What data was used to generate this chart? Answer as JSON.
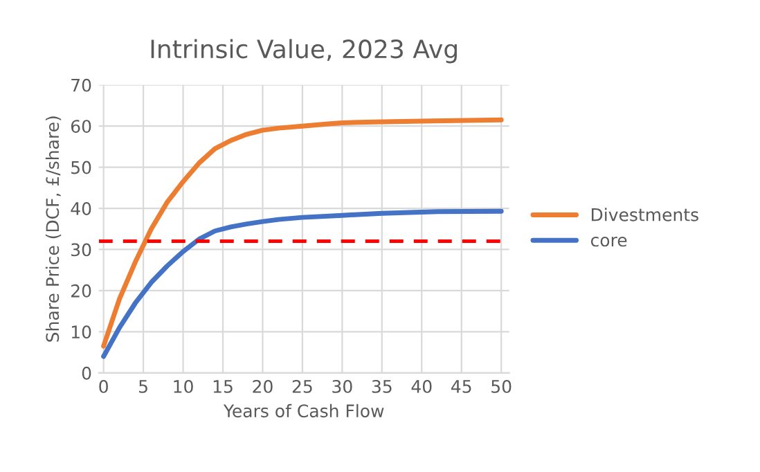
{
  "chart_data": {
    "type": "line",
    "title": "Intrinsic Value, 2023 Avg",
    "xlabel": "Years of Cash Flow",
    "ylabel": "Share Price (DCF, £/share)",
    "series": [
      {
        "name": "Divestments",
        "color": "#ed7d31",
        "x": [
          0,
          2,
          4,
          6,
          8,
          10,
          12,
          14,
          16,
          18,
          20,
          22,
          25,
          28,
          30,
          34,
          40,
          50
        ],
        "values": [
          6.5,
          18,
          27,
          35,
          41.5,
          46.5,
          51,
          54.5,
          56.5,
          58,
          59,
          59.5,
          60,
          60.5,
          60.8,
          61,
          61.2,
          61.5
        ]
      },
      {
        "name": "core",
        "color": "#4472c4",
        "x": [
          0,
          2,
          4,
          6,
          8,
          10,
          12,
          14,
          16,
          18,
          20,
          22,
          25,
          30,
          35,
          42,
          50
        ],
        "values": [
          4,
          11,
          17,
          22,
          26,
          29.5,
          32.5,
          34.5,
          35.5,
          36.2,
          36.8,
          37.3,
          37.8,
          38.3,
          38.8,
          39.2,
          39.3
        ]
      }
    ],
    "ref_lines": [
      {
        "axis": "y",
        "value": 32,
        "color": "#ff0000",
        "line_style": "dashed"
      }
    ],
    "xlim": [
      -0.6,
      51
    ],
    "xticks": [
      0,
      5,
      10,
      15,
      20,
      25,
      30,
      35,
      40,
      45,
      50
    ],
    "ylim": [
      0,
      70
    ],
    "yticks": [
      0,
      10,
      20,
      30,
      40,
      50,
      60,
      70
    ],
    "grid": true,
    "legend": "right",
    "line_style": "solid",
    "marker": "none"
  }
}
